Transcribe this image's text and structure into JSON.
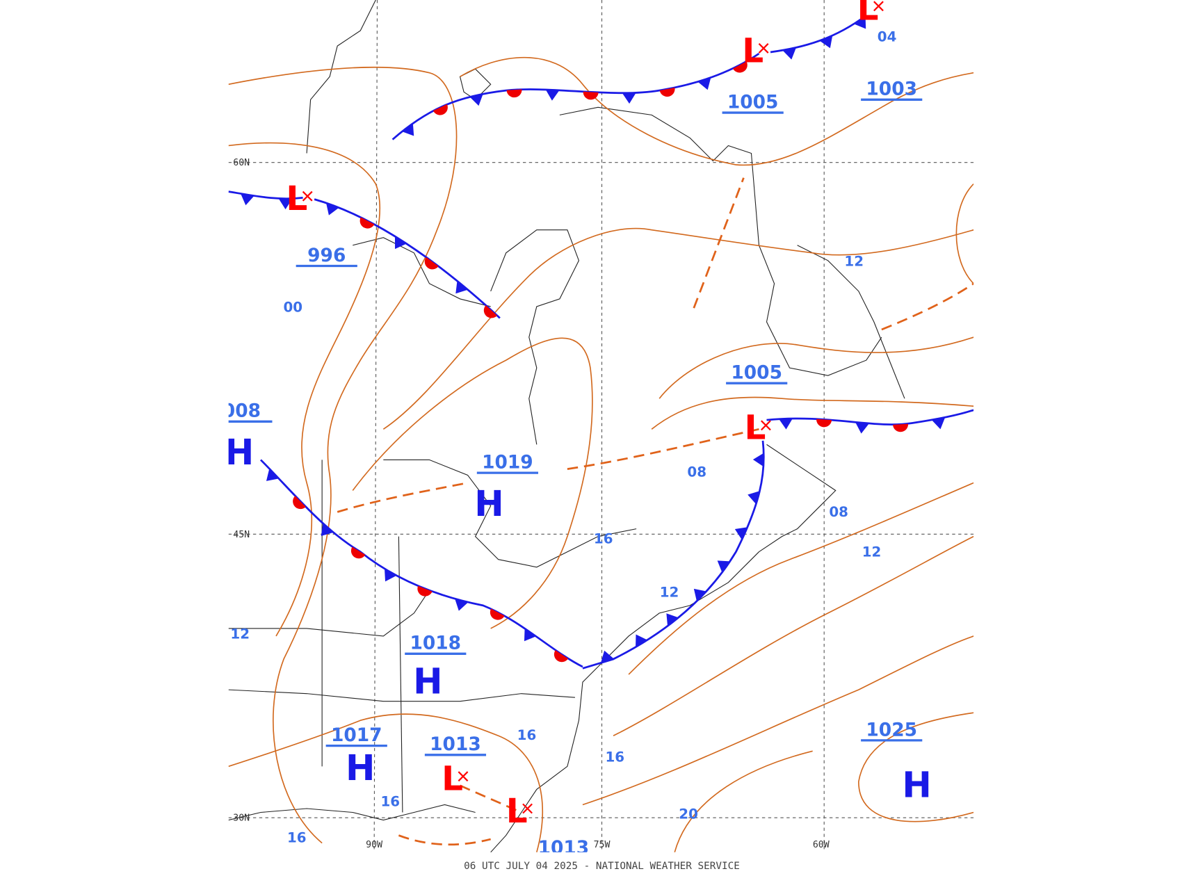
{
  "map": {
    "lows": [
      "L",
      "L",
      "L",
      "L",
      "L",
      "L"
    ],
    "highs": [
      "H",
      "H",
      "H",
      "H",
      "H"
    ],
    "pressure_labels": [
      "1005",
      "1003",
      "996",
      "1005",
      "008",
      "1019",
      "1018",
      "1017",
      "1013",
      "1025",
      "1013"
    ],
    "isobar_labels": [
      "04",
      "12",
      "00",
      "08",
      "16",
      "08",
      "12",
      "12",
      "12",
      "16",
      "16",
      "16",
      "16",
      "20"
    ],
    "grid_labels": [
      "60N",
      "45N",
      "30N",
      "90W",
      "75W",
      "60W"
    ],
    "footer": "06 UTC JULY 04 2025 - NATIONAL WEATHER SERVICE"
  }
}
